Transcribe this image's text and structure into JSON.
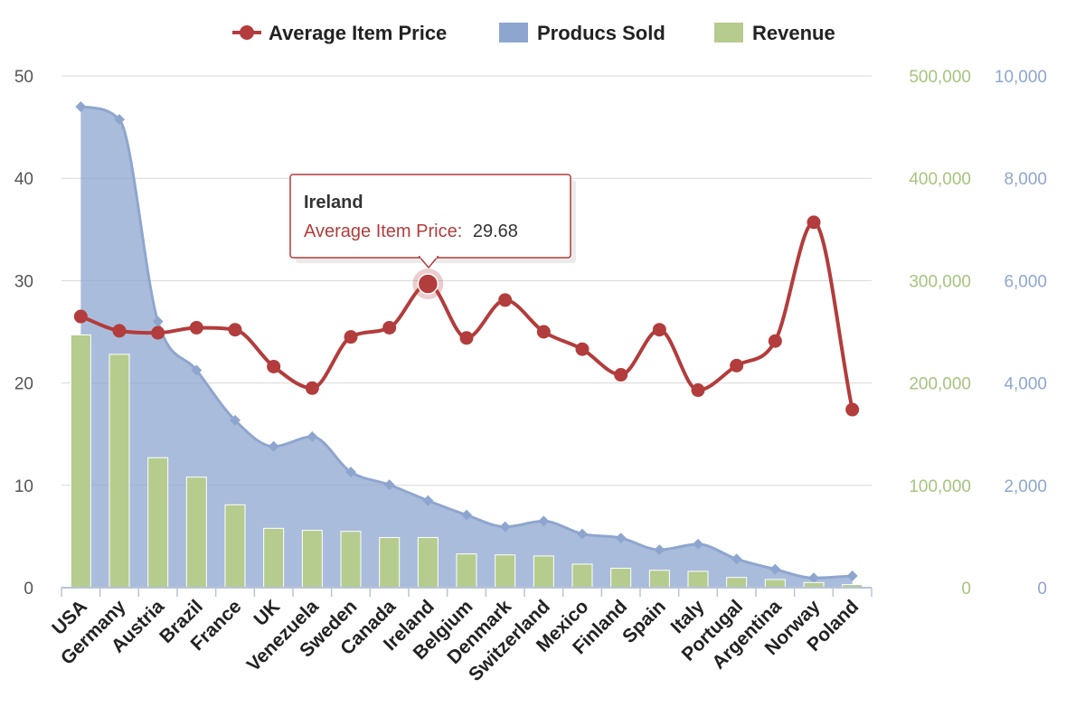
{
  "chart_data": {
    "type": "combo",
    "categories": [
      "USA",
      "Germany",
      "Austria",
      "Brazil",
      "France",
      "UK",
      "Venezuela",
      "Sweden",
      "Canada",
      "Ireland",
      "Belgium",
      "Denmark",
      "Switzerland",
      "Mexico",
      "Finland",
      "Spain",
      "Italy",
      "Portugal",
      "Argentina",
      "Norway",
      "Poland"
    ],
    "series": [
      {
        "name": "Average Item Price",
        "kind": "line",
        "axis": "left",
        "color": "#b33c3c",
        "values": [
          26.5,
          25.1,
          24.9,
          25.4,
          25.2,
          21.6,
          19.5,
          24.5,
          25.4,
          29.68,
          24.4,
          28.1,
          25.0,
          23.3,
          20.8,
          25.2,
          19.3,
          21.7,
          24.1,
          35.7,
          17.4
        ]
      },
      {
        "name": "Producs Sold",
        "kind": "area",
        "axis": "right-outer",
        "color": "#8ea6cf",
        "values": [
          9400,
          9150,
          5200,
          4250,
          3270,
          2760,
          2950,
          2260,
          2010,
          1700,
          1420,
          1190,
          1300,
          1050,
          970,
          740,
          850,
          560,
          360,
          190,
          230
        ]
      },
      {
        "name": "Revenue",
        "kind": "bar",
        "axis": "right-inner",
        "color": "#b5cc8e",
        "values": [
          247000,
          228000,
          127000,
          108000,
          81000,
          58000,
          56000,
          55000,
          49000,
          49000,
          33000,
          32000,
          31000,
          23000,
          19000,
          17000,
          16000,
          10000,
          8000,
          5000,
          3000
        ]
      }
    ],
    "axes": {
      "left": {
        "min": 0,
        "max": 50,
        "ticks": [
          "0",
          "10",
          "20",
          "30",
          "40",
          "50"
        ],
        "color": "#555555"
      },
      "right_inner": {
        "min": 0,
        "max": 500000,
        "ticks": [
          "0",
          "100,000",
          "200,000",
          "300,000",
          "400,000",
          "500,000"
        ],
        "color": "#a6c47e"
      },
      "right_outer": {
        "min": 0,
        "max": 10000,
        "ticks": [
          "0",
          "2,000",
          "4,000",
          "6,000",
          "8,000",
          "10,000"
        ],
        "color": "#8ea6cf"
      }
    },
    "grid": true,
    "legend": "top-center",
    "tooltip": {
      "category_index": 9,
      "title": "Ireland",
      "series_label": "Average Item Price:",
      "value": "29.68"
    }
  }
}
